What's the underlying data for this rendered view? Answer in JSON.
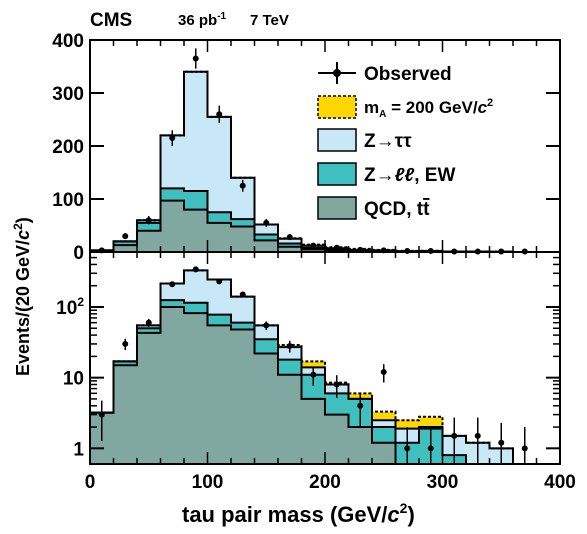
{
  "header": {
    "experiment": "CMS",
    "lumi_value": "36 pb",
    "lumi_exp": "-1",
    "energy": "7 TeV"
  },
  "legend": {
    "observed": "Observed",
    "signal_main": "m",
    "signal_sub": "A",
    "signal_rest": " = 200 GeV/",
    "signal_c": "c",
    "signal_exp": "2",
    "ztt": "Z→ττ",
    "zll_a": "Z→",
    "zll_b": "ℓℓ",
    "zll_c": ", EW",
    "qcd": "QCD, t",
    "qcd_tbar": "t"
  },
  "colors": {
    "signal": "#ffd700",
    "ztt": "#c8e8f8",
    "zll": "#40bfbf",
    "qcd": "#80a8a0",
    "line": "#000000"
  },
  "axes": {
    "xlabel_main": "tau pair mass (GeV/",
    "xlabel_c": "c",
    "xlabel_exp": "2",
    "xlabel_close": ")",
    "ylabel_main": "Events/(20 GeV/",
    "ylabel_c": "c",
    "ylabel_exp": "2",
    "ylabel_close": ")"
  },
  "chart_data": [
    {
      "type": "bar",
      "name": "linear-panel",
      "bin_edges": [
        0,
        20,
        40,
        60,
        80,
        100,
        120,
        140,
        160,
        180,
        200,
        220,
        240,
        260,
        280,
        300,
        320,
        340,
        360,
        380,
        400
      ],
      "series": [
        {
          "name": "QCD, tt",
          "values": [
            2,
            13,
            40,
            97,
            80,
            55,
            48,
            22,
            10,
            5,
            3,
            2,
            1,
            0.7,
            0.9,
            0.4,
            0.3,
            0.2,
            0.05,
            0.05
          ]
        },
        {
          "name": "Z→ℓℓ, EW",
          "values": [
            3,
            20,
            55,
            120,
            115,
            75,
            62,
            33,
            16,
            8,
            5,
            3,
            2,
            1.2,
            1.5,
            0.8,
            0.6,
            0.5,
            0.05,
            0.05
          ]
        },
        {
          "name": "Z→ττ",
          "values": [
            3,
            20,
            60,
            220,
            340,
            255,
            140,
            52,
            25,
            12,
            7,
            4,
            3,
            1.5,
            1.8,
            1.0,
            0.7,
            0.5,
            0.05,
            0.05
          ]
        },
        {
          "name": "m_A = 200 GeV/c2",
          "values": [
            3,
            20,
            60,
            220,
            340,
            255,
            140,
            52,
            26,
            14,
            9,
            6,
            4,
            2.1,
            2.3,
            1.0,
            0.7,
            0.5,
            0.05,
            0.05
          ]
        }
      ],
      "observed": {
        "x": [
          10,
          30,
          50,
          70,
          90,
          110,
          130,
          150,
          170,
          190,
          210,
          230,
          250,
          270,
          290,
          310,
          330,
          350,
          370
        ],
        "y": [
          3,
          30,
          60,
          215,
          365,
          260,
          125,
          55,
          28,
          12,
          8,
          4,
          3,
          2,
          2,
          1,
          1,
          1,
          1
        ]
      },
      "xlim": [
        0,
        400
      ],
      "ylim": [
        0,
        400
      ],
      "yticks": [
        0,
        100,
        200,
        300,
        400
      ]
    },
    {
      "type": "bar",
      "name": "log-panel",
      "log_scale_y": true,
      "bin_edges": [
        0,
        20,
        40,
        60,
        80,
        100,
        120,
        140,
        160,
        180,
        200,
        220,
        240,
        260,
        280,
        300,
        320,
        340,
        360,
        380,
        400
      ],
      "series": [
        {
          "name": "QCD, tt",
          "values": [
            3.2,
            15,
            43,
            100,
            82,
            55,
            48,
            22,
            11,
            5,
            3,
            2,
            1.2,
            0.6,
            0.5,
            0.4,
            0.3,
            0.2,
            0.05,
            0.05
          ]
        },
        {
          "name": "Z→ℓℓ, EW",
          "values": [
            3.2,
            17,
            50,
            125,
            115,
            78,
            60,
            35,
            18,
            11,
            6,
            5,
            2,
            1.2,
            1.9,
            0.8,
            0.5,
            0.4,
            0.05,
            0.05
          ]
        },
        {
          "name": "Z→ττ",
          "values": [
            3.2,
            17,
            55,
            215,
            330,
            245,
            140,
            55,
            27,
            14,
            8,
            5,
            2.5,
            1.9,
            2.0,
            1.5,
            1.2,
            1.0,
            0.05,
            0.05
          ]
        },
        {
          "name": "m_A = 200 GeV/c2",
          "values": [
            3.2,
            17,
            55,
            215,
            330,
            245,
            140,
            55,
            29,
            17,
            8.5,
            6,
            3.3,
            2.5,
            2.8,
            1.5,
            1.2,
            1.0,
            0.05,
            0.05
          ]
        }
      ],
      "observed": {
        "x": [
          10,
          30,
          50,
          70,
          90,
          110,
          130,
          150,
          170,
          190,
          210,
          230,
          250,
          270,
          290,
          310,
          330,
          350,
          370
        ],
        "y": [
          3,
          30,
          60,
          210,
          340,
          230,
          150,
          55,
          28,
          11,
          8,
          4,
          12,
          1,
          1,
          1.5,
          1.5,
          1.2,
          1
        ]
      },
      "xlim": [
        0,
        400
      ],
      "ylim": [
        0.6,
        600
      ],
      "yticks": [
        1,
        10,
        100
      ],
      "xticks": [
        0,
        100,
        200,
        300,
        400
      ]
    }
  ]
}
